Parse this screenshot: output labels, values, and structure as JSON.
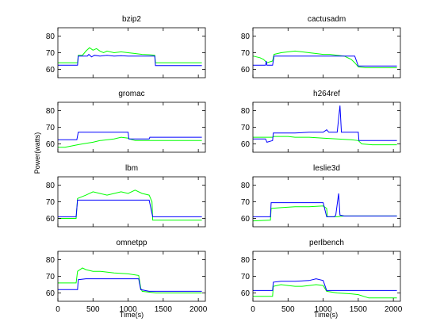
{
  "chart_data": {
    "type": "line",
    "ylabel": "Power(watts)",
    "xlabel": "Time(s)",
    "xlim": [
      0,
      2100
    ],
    "xticks": [
      0,
      500,
      1000,
      1500,
      2000
    ],
    "grid": false,
    "series_colors": {
      "blue": "#0000ff",
      "green": "#00ff00"
    },
    "panels": [
      {
        "title": "bzip2",
        "ylim": [
          55,
          85
        ],
        "yticks": [
          60,
          70,
          80
        ],
        "blue": [
          [
            0,
            62.5
          ],
          [
            280,
            62.5
          ],
          [
            290,
            68
          ],
          [
            420,
            68
          ],
          [
            440,
            69
          ],
          [
            480,
            67.5
          ],
          [
            520,
            68.5
          ],
          [
            600,
            68
          ],
          [
            700,
            68.5
          ],
          [
            800,
            68
          ],
          [
            900,
            68.2
          ],
          [
            1000,
            68
          ],
          [
            1100,
            68
          ],
          [
            1380,
            68
          ],
          [
            1390,
            62.3
          ],
          [
            2050,
            62.3
          ]
        ],
        "green": [
          [
            0,
            64
          ],
          [
            280,
            64
          ],
          [
            290,
            68.5
          ],
          [
            350,
            68.5
          ],
          [
            400,
            71
          ],
          [
            450,
            73
          ],
          [
            500,
            71.5
          ],
          [
            550,
            72.5
          ],
          [
            600,
            71
          ],
          [
            650,
            70
          ],
          [
            700,
            71
          ],
          [
            800,
            70
          ],
          [
            900,
            70.5
          ],
          [
            1000,
            70
          ],
          [
            1100,
            69.5
          ],
          [
            1200,
            69
          ],
          [
            1300,
            68.8
          ],
          [
            1380,
            68.5
          ],
          [
            1390,
            64
          ],
          [
            2050,
            64
          ]
        ]
      },
      {
        "title": "cactusadm",
        "ylim": [
          55,
          85
        ],
        "yticks": [
          60,
          70,
          80
        ],
        "blue": [
          [
            0,
            62.5
          ],
          [
            180,
            62.5
          ],
          [
            190,
            65
          ],
          [
            200,
            62.5
          ],
          [
            280,
            62.5
          ],
          [
            300,
            68
          ],
          [
            400,
            68
          ],
          [
            500,
            68
          ],
          [
            600,
            68
          ],
          [
            700,
            68
          ],
          [
            800,
            68
          ],
          [
            900,
            68
          ],
          [
            1000,
            68
          ],
          [
            1100,
            68
          ],
          [
            1200,
            68
          ],
          [
            1300,
            68
          ],
          [
            1450,
            68
          ],
          [
            1500,
            62
          ],
          [
            2050,
            62
          ]
        ],
        "green": [
          [
            0,
            68
          ],
          [
            100,
            67
          ],
          [
            150,
            66
          ],
          [
            200,
            64
          ],
          [
            280,
            65
          ],
          [
            300,
            69
          ],
          [
            400,
            70
          ],
          [
            500,
            70.5
          ],
          [
            600,
            71
          ],
          [
            700,
            70.5
          ],
          [
            800,
            70
          ],
          [
            900,
            69.5
          ],
          [
            1000,
            69
          ],
          [
            1100,
            69
          ],
          [
            1200,
            68.5
          ],
          [
            1300,
            68
          ],
          [
            1400,
            66
          ],
          [
            1450,
            64
          ],
          [
            1500,
            61.5
          ],
          [
            1600,
            61
          ],
          [
            2050,
            61
          ]
        ]
      },
      {
        "title": "gromac",
        "ylim": [
          55,
          85
        ],
        "yticks": [
          60,
          70,
          80
        ],
        "blue": [
          [
            0,
            62.5
          ],
          [
            270,
            62.5
          ],
          [
            290,
            67
          ],
          [
            1000,
            67
          ],
          [
            1010,
            63
          ],
          [
            1300,
            63
          ],
          [
            1310,
            64
          ],
          [
            2050,
            64
          ]
        ],
        "green": [
          [
            0,
            58
          ],
          [
            100,
            58
          ],
          [
            280,
            59.5
          ],
          [
            350,
            60
          ],
          [
            500,
            61
          ],
          [
            600,
            62
          ],
          [
            800,
            63
          ],
          [
            900,
            64
          ],
          [
            1000,
            63.5
          ],
          [
            1020,
            63
          ],
          [
            1100,
            62
          ],
          [
            1300,
            62
          ],
          [
            1350,
            62
          ],
          [
            2050,
            62
          ]
        ]
      },
      {
        "title": "h264ref",
        "ylim": [
          55,
          85
        ],
        "yticks": [
          60,
          70,
          80
        ],
        "blue": [
          [
            0,
            63
          ],
          [
            180,
            63
          ],
          [
            200,
            61
          ],
          [
            280,
            62
          ],
          [
            290,
            66.5
          ],
          [
            600,
            66.5
          ],
          [
            800,
            67
          ],
          [
            1000,
            67
          ],
          [
            1050,
            68.5
          ],
          [
            1080,
            67
          ],
          [
            1200,
            67
          ],
          [
            1240,
            83
          ],
          [
            1260,
            67
          ],
          [
            1500,
            67
          ],
          [
            1510,
            62
          ],
          [
            2050,
            62
          ]
        ],
        "green": [
          [
            0,
            64
          ],
          [
            200,
            64
          ],
          [
            280,
            64
          ],
          [
            300,
            64.5
          ],
          [
            500,
            64.5
          ],
          [
            600,
            64
          ],
          [
            800,
            64
          ],
          [
            1000,
            63.5
          ],
          [
            1200,
            63
          ],
          [
            1400,
            62.5
          ],
          [
            1500,
            62
          ],
          [
            1550,
            60
          ],
          [
            1700,
            59.5
          ],
          [
            2050,
            59.5
          ]
        ]
      },
      {
        "title": "lbm",
        "ylim": [
          55,
          85
        ],
        "yticks": [
          60,
          70,
          80
        ],
        "blue": [
          [
            0,
            61
          ],
          [
            260,
            61
          ],
          [
            280,
            71
          ],
          [
            1100,
            71
          ],
          [
            1300,
            71
          ],
          [
            1350,
            61
          ],
          [
            1500,
            61
          ],
          [
            1800,
            61
          ],
          [
            2050,
            61
          ]
        ],
        "green": [
          [
            0,
            60
          ],
          [
            260,
            60
          ],
          [
            280,
            72
          ],
          [
            400,
            74
          ],
          [
            500,
            76
          ],
          [
            600,
            75
          ],
          [
            700,
            74
          ],
          [
            800,
            75
          ],
          [
            900,
            76
          ],
          [
            1000,
            75
          ],
          [
            1100,
            77
          ],
          [
            1200,
            75
          ],
          [
            1300,
            74
          ],
          [
            1340,
            70
          ],
          [
            1350,
            59
          ],
          [
            2050,
            59
          ]
        ]
      },
      {
        "title": "leslie3d",
        "ylim": [
          55,
          85
        ],
        "yticks": [
          60,
          70,
          80
        ],
        "blue": [
          [
            0,
            61
          ],
          [
            250,
            61
          ],
          [
            260,
            69.5
          ],
          [
            1000,
            69.5
          ],
          [
            1050,
            61
          ],
          [
            1160,
            61
          ],
          [
            1180,
            62
          ],
          [
            1220,
            75
          ],
          [
            1240,
            62
          ],
          [
            1300,
            61.5
          ],
          [
            2050,
            61.5
          ]
        ],
        "green": [
          [
            0,
            58.5
          ],
          [
            250,
            59
          ],
          [
            260,
            66
          ],
          [
            400,
            66.5
          ],
          [
            600,
            67
          ],
          [
            800,
            67
          ],
          [
            1000,
            67.5
          ],
          [
            1050,
            66
          ],
          [
            1060,
            61
          ],
          [
            1200,
            61
          ],
          [
            1300,
            61.5
          ],
          [
            2050,
            61.5
          ]
        ]
      },
      {
        "title": "omnetpp",
        "ylim": [
          55,
          85
        ],
        "yticks": [
          60,
          70,
          80
        ],
        "blue": [
          [
            0,
            62
          ],
          [
            280,
            62
          ],
          [
            290,
            68
          ],
          [
            400,
            68.5
          ],
          [
            600,
            68.5
          ],
          [
            800,
            68.5
          ],
          [
            1000,
            68.5
          ],
          [
            1150,
            68.5
          ],
          [
            1180,
            62
          ],
          [
            1300,
            61
          ],
          [
            1600,
            61
          ],
          [
            2050,
            61
          ]
        ],
        "green": [
          [
            0,
            66
          ],
          [
            260,
            66
          ],
          [
            280,
            73
          ],
          [
            350,
            75
          ],
          [
            400,
            74
          ],
          [
            500,
            73
          ],
          [
            600,
            73
          ],
          [
            800,
            72
          ],
          [
            1000,
            71.5
          ],
          [
            1150,
            70.5
          ],
          [
            1180,
            63
          ],
          [
            1200,
            61
          ],
          [
            1400,
            60
          ],
          [
            1600,
            60
          ],
          [
            2050,
            60
          ]
        ]
      },
      {
        "title": "perlbench",
        "ylim": [
          55,
          85
        ],
        "yticks": [
          60,
          70,
          80
        ],
        "blue": [
          [
            0,
            61.5
          ],
          [
            280,
            61.5
          ],
          [
            290,
            66.5
          ],
          [
            400,
            67
          ],
          [
            500,
            67
          ],
          [
            600,
            67
          ],
          [
            800,
            67.5
          ],
          [
            900,
            68.5
          ],
          [
            1000,
            67.5
          ],
          [
            1050,
            61.5
          ],
          [
            1200,
            61.5
          ],
          [
            1600,
            61.5
          ],
          [
            2050,
            61.5
          ]
        ],
        "green": [
          [
            0,
            58
          ],
          [
            280,
            58
          ],
          [
            290,
            64
          ],
          [
            400,
            65
          ],
          [
            500,
            64.5
          ],
          [
            600,
            64
          ],
          [
            700,
            64
          ],
          [
            800,
            64.5
          ],
          [
            900,
            65
          ],
          [
            1000,
            64.5
          ],
          [
            1050,
            61
          ],
          [
            1200,
            60
          ],
          [
            1400,
            59.5
          ],
          [
            1500,
            59
          ],
          [
            1650,
            57
          ],
          [
            2050,
            57
          ]
        ]
      }
    ]
  }
}
